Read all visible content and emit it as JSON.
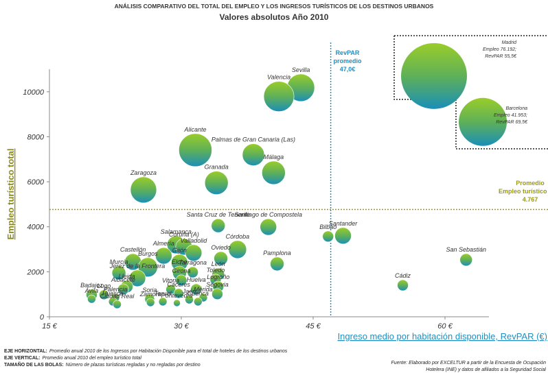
{
  "chart_data": {
    "type": "bubble",
    "title": "ANÁLISIS COMPARATIVO DEL TOTAL DEL EMPLEO Y LOS INGRESOS TURÍSTICOS DE LOS DESTINOS URBANOS",
    "subtitle": "Valores absolutos Año 2010",
    "x_label": "Ingreso medio por habitación disponible, RevPAR (€)",
    "y_label": "Empleo turístico total",
    "xlim": [
      15,
      65
    ],
    "ylim": [
      0,
      11000
    ],
    "xticks": [
      {
        "value": 15,
        "label": "15 €"
      },
      {
        "value": 30,
        "label": "30 €"
      },
      {
        "value": 45,
        "label": "45 €"
      },
      {
        "value": 60,
        "label": "60 €"
      }
    ],
    "yticks": [
      0,
      2000,
      4000,
      6000,
      8000,
      10000
    ],
    "points": [
      {
        "name": "Sevilla",
        "x": 43.6,
        "y": 10180,
        "size": 400
      },
      {
        "name": "Valencia",
        "x": 41.1,
        "y": 9790,
        "size": 484
      },
      {
        "name": "Alicante",
        "x": 31.6,
        "y": 7410,
        "size": 576
      },
      {
        "name": "Palmas de Gran Canaria (Las)",
        "x": 38.2,
        "y": 7200,
        "size": 256
      },
      {
        "name": "Málaga",
        "x": 40.5,
        "y": 6400,
        "size": 289
      },
      {
        "name": "Granada",
        "x": 34.0,
        "y": 5950,
        "size": 289
      },
      {
        "name": "Zaragoza",
        "x": 25.7,
        "y": 5640,
        "size": 361
      },
      {
        "name": "Santa Cruz de Tenerife",
        "x": 34.2,
        "y": 4050,
        "size": 100
      },
      {
        "name": "Santiago de Compostela",
        "x": 39.9,
        "y": 3990,
        "size": 144
      },
      {
        "name": "Santander",
        "x": 48.4,
        "y": 3600,
        "size": 144
      },
      {
        "name": "Bilbao",
        "x": 46.7,
        "y": 3570,
        "size": 64
      },
      {
        "name": "San Sebastián",
        "x": 62.4,
        "y": 2530,
        "size": 81
      },
      {
        "name": "Cádiz",
        "x": 55.2,
        "y": 1400,
        "size": 64
      },
      {
        "name": "Pamplona",
        "x": 40.9,
        "y": 2350,
        "size": 100
      },
      {
        "name": "Córdoba",
        "x": 36.4,
        "y": 2990,
        "size": 169
      },
      {
        "name": "Oviedo",
        "x": 34.5,
        "y": 2590,
        "size": 100
      },
      {
        "name": "Salamanca",
        "x": 29.4,
        "y": 3200,
        "size": 169
      },
      {
        "name": "Coruña (A)",
        "x": 30.3,
        "y": 3110,
        "size": 144
      },
      {
        "name": "Valladolid",
        "x": 31.4,
        "y": 2840,
        "size": 144
      },
      {
        "name": "Almería",
        "x": 28.0,
        "y": 2710,
        "size": 144
      },
      {
        "name": "Castellón",
        "x": 24.5,
        "y": 2440,
        "size": 144
      },
      {
        "name": "Burgos",
        "x": 26.2,
        "y": 2200,
        "size": 196
      },
      {
        "name": "Gijón",
        "x": 29.8,
        "y": 2410,
        "size": 144
      },
      {
        "name": "Elche",
        "x": 29.8,
        "y": 1950,
        "size": 100
      },
      {
        "name": "Murcia",
        "x": 22.9,
        "y": 1950,
        "size": 100
      },
      {
        "name": "Jerez de la Frontera",
        "x": 25.0,
        "y": 1710,
        "size": 144
      },
      {
        "name": "León",
        "x": 34.2,
        "y": 1890,
        "size": 81
      },
      {
        "name": "Tarragona",
        "x": 31.3,
        "y": 1980,
        "size": 64
      },
      {
        "name": "Toledo",
        "x": 33.9,
        "y": 1650,
        "size": 64
      },
      {
        "name": "Girona",
        "x": 30.0,
        "y": 1620,
        "size": 64
      },
      {
        "name": "Lleida",
        "x": 23.8,
        "y": 1340,
        "size": 81
      },
      {
        "name": "Albacete",
        "x": 23.4,
        "y": 1220,
        "size": 64
      },
      {
        "name": "Logroño",
        "x": 34.2,
        "y": 1340,
        "size": 64
      },
      {
        "name": "Vitoria",
        "x": 28.8,
        "y": 1220,
        "size": 49
      },
      {
        "name": "Huelva",
        "x": 31.7,
        "y": 1220,
        "size": 64
      },
      {
        "name": "Segovia",
        "x": 34.1,
        "y": 1010,
        "size": 64
      },
      {
        "name": "Cáceres",
        "x": 29.7,
        "y": 1040,
        "size": 49
      },
      {
        "name": "Badajoz",
        "x": 19.8,
        "y": 980,
        "size": 64
      },
      {
        "name": "Lugo",
        "x": 21.2,
        "y": 980,
        "size": 49
      },
      {
        "name": "Mérida",
        "x": 32.5,
        "y": 850,
        "size": 36
      },
      {
        "name": "Palencia",
        "x": 22.5,
        "y": 850,
        "size": 36
      },
      {
        "name": "Soria",
        "x": 26.4,
        "y": 790,
        "size": 49
      },
      {
        "name": "Ávila",
        "x": 19.8,
        "y": 790,
        "size": 36
      },
      {
        "name": "Teruel",
        "x": 27.9,
        "y": 670,
        "size": 36
      },
      {
        "name": "Jaén",
        "x": 30.9,
        "y": 760,
        "size": 36
      },
      {
        "name": "Cuenca",
        "x": 31.9,
        "y": 670,
        "size": 36
      },
      {
        "name": "Huesca",
        "x": 22.2,
        "y": 670,
        "size": 36
      },
      {
        "name": "Zamora",
        "x": 26.5,
        "y": 640,
        "size": 36
      },
      {
        "name": "Pontevedra",
        "x": 29.5,
        "y": 610,
        "size": 25
      },
      {
        "name": "Ciudad Real",
        "x": 22.7,
        "y": 550,
        "size": 36
      }
    ],
    "insets": [
      {
        "x": 58.75,
        "y": 10700,
        "size": 2304,
        "lines": [
          "Madrid",
          "Empleo 76.192;",
          "RevPAR 55,5€"
        ]
      },
      {
        "x": 64.3,
        "y": 8660,
        "size": 1225,
        "lines": [
          "Barcelona",
          "Empleo 41.953;",
          "RevPAR 69,5€"
        ]
      }
    ],
    "reference_lines": {
      "x": {
        "value": 47.0,
        "label_lines": [
          "RevPAR",
          "promedio",
          "47,0€"
        ],
        "color": "#1e8fc0"
      },
      "y": {
        "value": 4767,
        "label_lines": [
          "Promedio",
          "Empleo turístico total",
          "4.767"
        ],
        "color": "#9a9a14"
      }
    },
    "notes": [
      {
        "key": "EJE HORIZONTAL:",
        "text": "Promedio anual 2010 de los Ingresos por Habitación Disponible para el total de hoteles de los destinos urbanos"
      },
      {
        "key": "EJE VERTICAL:",
        "text": "Promedio anual 2010 del empleo turístico total"
      },
      {
        "key": "TAMAÑO DE LAS BOLAS:",
        "text": "Número de plazas turísticas regladas y no regladas por destino"
      }
    ],
    "source_lines": [
      "Fuente: Elaborado por EXCELTUR a partir de la Encuesta de Ocupación",
      "Hotelera (INE) y datos de afiliados a la Seguridad Social"
    ]
  }
}
